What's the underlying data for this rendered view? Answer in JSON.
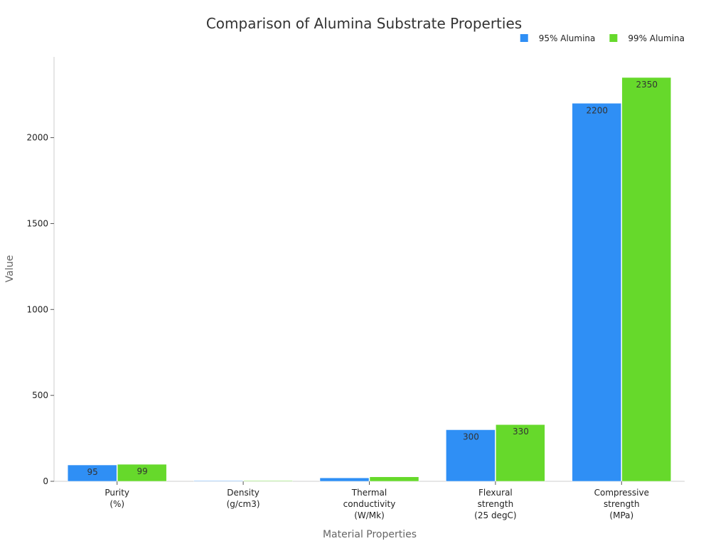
{
  "chart_data": {
    "type": "bar",
    "title": "Comparison of Alumina Substrate Properties",
    "x_label": "Material Properties",
    "y_label": "Value",
    "categories": [
      [
        "Purity",
        "(%)"
      ],
      [
        "Density",
        "(g/cm3)"
      ],
      [
        "Thermal",
        "conductivity",
        "(W/Mk)"
      ],
      [
        "Flexural",
        "strength",
        "(25 degC)"
      ],
      [
        "Compressive",
        "strength",
        "(MPa)"
      ]
    ],
    "series": [
      {
        "name": "95% Alumina",
        "color": "#2f8ff5",
        "values": [
          95,
          3.7,
          20,
          300,
          2200
        ]
      },
      {
        "name": "99% Alumina",
        "color": "#66d92b",
        "values": [
          99,
          3.9,
          26,
          330,
          2350
        ]
      }
    ],
    "ylim": [
      0,
      2470
    ],
    "yticks": [
      0,
      500,
      1000,
      1500,
      2000
    ],
    "legend": "top-right"
  }
}
